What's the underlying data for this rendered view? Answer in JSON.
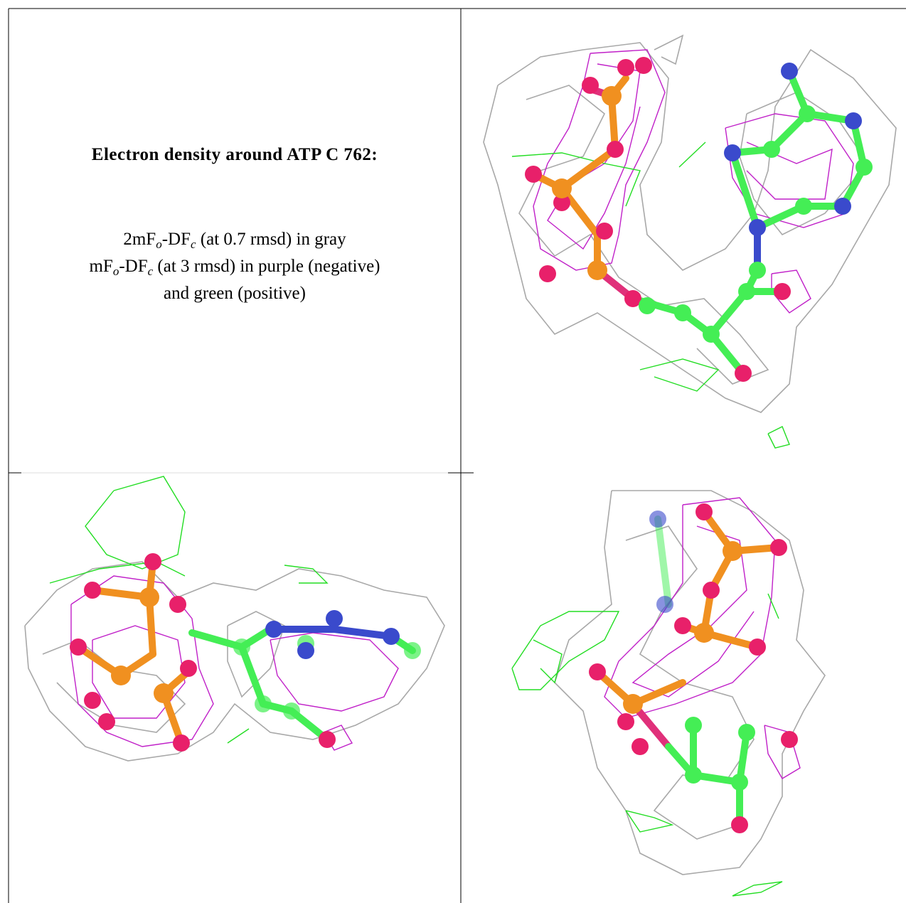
{
  "panel": {
    "title": "Electron density around ATP C 762:",
    "legend": [
      [
        "2mF",
        "o",
        "-DF",
        "c",
        " (at 0.7 rmsd) in gray"
      ],
      [
        "mF",
        "o",
        "-DF",
        "c",
        " (at 3 rmsd) in purple (negative)"
      ],
      [
        "and green (positive)"
      ]
    ]
  }
}
